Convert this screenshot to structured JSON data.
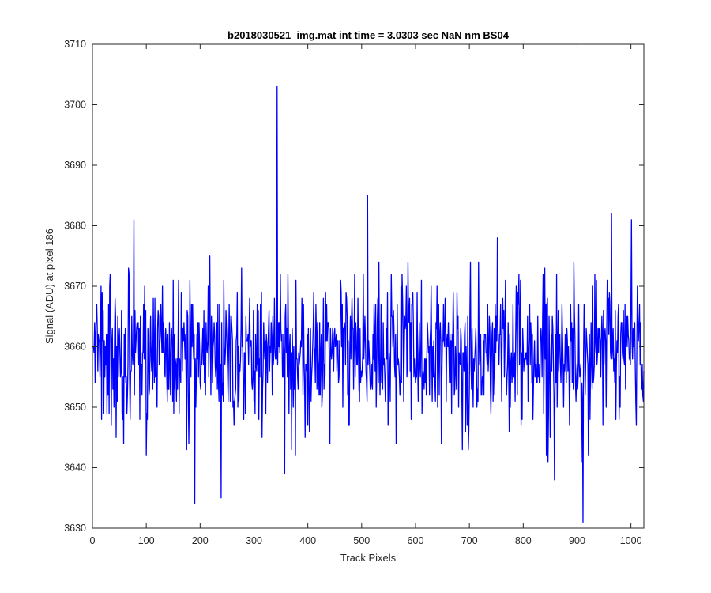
{
  "chart_data": {
    "type": "line",
    "title": "b2018030521_img.mat int time = 3.0303 sec  NaN nm BS04",
    "xlabel": "Track Pixels",
    "ylabel": "Signal (ADU) at pixel 186",
    "xlim": [
      0,
      1024
    ],
    "ylim": [
      3630,
      3710
    ],
    "xticks": [
      0,
      100,
      200,
      300,
      400,
      500,
      600,
      700,
      800,
      900,
      1000
    ],
    "yticks": [
      3630,
      3640,
      3650,
      3660,
      3670,
      3680,
      3690,
      3700,
      3710
    ],
    "grid": false,
    "legend": "none",
    "series": [
      {
        "color": "#0000ff",
        "notable_points": [
          {
            "x": 76,
            "y": 3681
          },
          {
            "x": 189,
            "y": 3634
          },
          {
            "x": 238,
            "y": 3635
          },
          {
            "x": 342,
            "y": 3703
          },
          {
            "x": 510,
            "y": 3685
          },
          {
            "x": 910,
            "y": 3631
          },
          {
            "x": 963,
            "y": 3682
          },
          {
            "x": 1000,
            "y": 3681
          }
        ],
        "baseline_mean": 3659,
        "noise_std": 6.2,
        "n_points": 1024
      }
    ]
  }
}
